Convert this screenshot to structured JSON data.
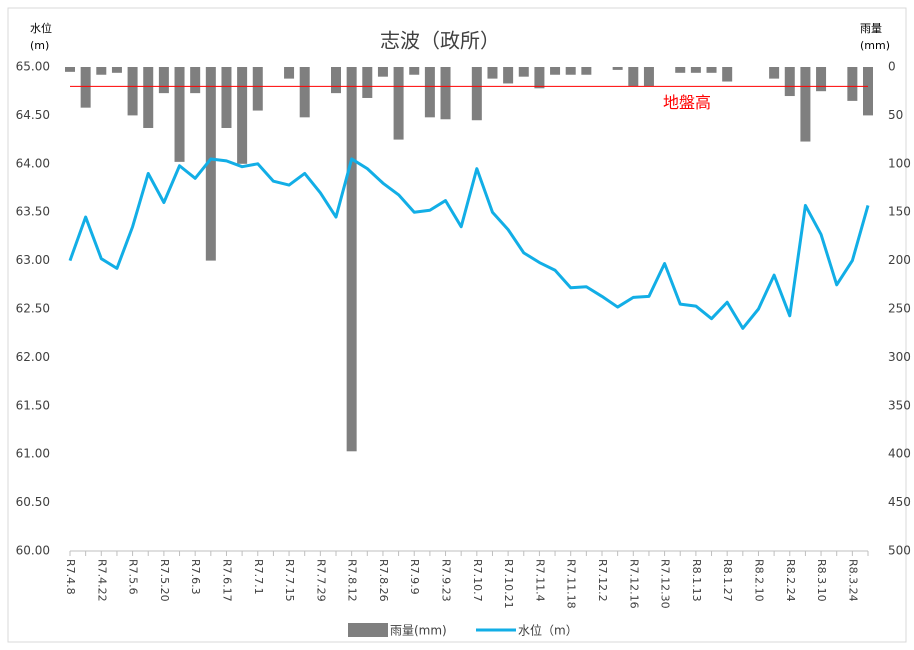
{
  "chart_data": {
    "type": "bar-line",
    "title": "志波（政所）",
    "y_label": "水位",
    "y_unit": "(m)",
    "y2_label": "雨量",
    "y2_unit": "(mm)",
    "categories": [
      "R7.4.8",
      null,
      "R7.4.22",
      null,
      "R7.5.6",
      null,
      "R7.5.20",
      null,
      "R7.6.3",
      null,
      "R7.6.17",
      null,
      "R7.7.1",
      null,
      "R7.7.15",
      null,
      "R7.7.29",
      null,
      "R7.8.12",
      null,
      "R7.8.26",
      null,
      "R7.9.9",
      null,
      "R7.9.23",
      null,
      "R7.10.7",
      null,
      "R7.10.21",
      null,
      "R7.11.4",
      null,
      "R7.11.18",
      null,
      "R7.12.2",
      null,
      "R7.12.16",
      null,
      "R7.12.30",
      null,
      "R8.1.13",
      null,
      "R8.1.27",
      null,
      "R8.2.10",
      null,
      "R8.2.24",
      null,
      "R8.3.10",
      null,
      "R8.3.24",
      null
    ],
    "series": [
      {
        "name": "雨量(mm)",
        "type": "bar",
        "axis": "y2",
        "color": "#7f7f7f",
        "values": [
          5,
          42,
          8,
          6,
          50,
          63,
          27,
          98,
          27,
          200,
          63,
          100,
          45,
          0,
          12,
          52,
          0,
          27,
          397,
          32,
          10,
          75,
          8,
          52,
          54,
          0,
          55,
          12,
          17,
          10,
          22,
          8,
          8,
          8,
          0,
          3,
          20,
          20,
          0,
          6,
          6,
          6,
          15,
          0,
          0,
          12,
          30,
          77,
          25,
          0,
          35,
          50
        ]
      },
      {
        "name": "水位（m）",
        "type": "line",
        "axis": "y",
        "color": "#12aee6",
        "values": [
          63.0,
          63.45,
          63.02,
          62.92,
          63.35,
          63.9,
          63.6,
          63.98,
          63.85,
          64.05,
          64.03,
          63.97,
          64.0,
          63.82,
          63.78,
          63.9,
          63.7,
          63.45,
          64.05,
          63.95,
          63.8,
          63.68,
          63.5,
          63.52,
          63.62,
          63.35,
          63.95,
          63.5,
          63.32,
          63.08,
          62.98,
          62.9,
          62.72,
          62.73,
          62.63,
          62.52,
          62.62,
          62.63,
          62.97,
          62.55,
          62.53,
          62.4,
          62.57,
          62.3,
          62.5,
          62.85,
          62.43,
          63.57,
          63.27,
          62.75,
          63.0,
          63.57
        ]
      }
    ],
    "ylim": [
      60,
      65
    ],
    "yticks": [
      {
        "value": 60,
        "label": "60.00"
      },
      {
        "value": 60.5,
        "label": "60.50"
      },
      {
        "value": 61,
        "label": "61.00"
      },
      {
        "value": 61.5,
        "label": "61.50"
      },
      {
        "value": 62,
        "label": "62.00"
      },
      {
        "value": 62.5,
        "label": "62.50"
      },
      {
        "value": 63,
        "label": "63.00"
      },
      {
        "value": 63.5,
        "label": "63.50"
      },
      {
        "value": 64,
        "label": "64.00"
      },
      {
        "value": 64.5,
        "label": "64.50"
      },
      {
        "value": 65,
        "label": "65.00"
      }
    ],
    "y2lim": [
      500,
      0
    ],
    "y2ticks": [
      0,
      50,
      100,
      150,
      200,
      250,
      300,
      350,
      400,
      450,
      500
    ],
    "reference_line": {
      "value": 64.8,
      "label": "地盤高",
      "color": "#ff0000"
    },
    "grid": false,
    "legend": "bottom"
  }
}
